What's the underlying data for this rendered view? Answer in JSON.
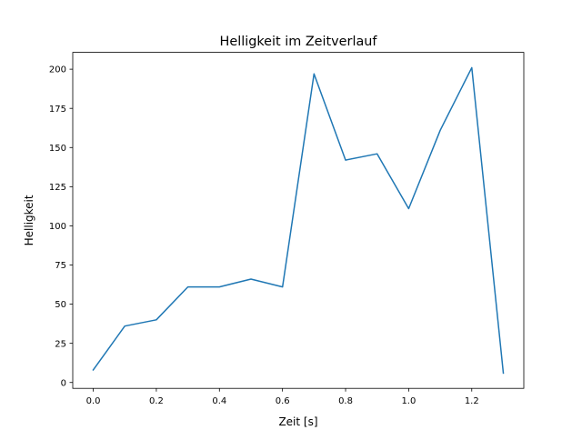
{
  "chart_data": {
    "type": "line",
    "title": "Helligkeit im Zeitverlauf",
    "xlabel": "Zeit [s]",
    "ylabel": "Helligkeit",
    "x": [
      0.0,
      0.1,
      0.2,
      0.3,
      0.4,
      0.5,
      0.6,
      0.7,
      0.8,
      0.9,
      1.0,
      1.1,
      1.2,
      1.3
    ],
    "series": [
      {
        "name": "Helligkeit",
        "color": "#1f77b4",
        "values": [
          8,
          36,
          40,
          61,
          61,
          66,
          61,
          197,
          142,
          146,
          111,
          161,
          201,
          6
        ]
      }
    ],
    "xlim": [
      -0.065,
      1.365
    ],
    "ylim": [
      -3.75,
      210.75
    ],
    "xticks": [
      0.0,
      0.2,
      0.4,
      0.6,
      0.8,
      1.0,
      1.2
    ],
    "xtick_labels": [
      "0.0",
      "0.2",
      "0.4",
      "0.6",
      "0.8",
      "1.0",
      "1.2"
    ],
    "yticks": [
      0,
      25,
      50,
      75,
      100,
      125,
      150,
      175,
      200
    ],
    "ytick_labels": [
      "0",
      "25",
      "50",
      "75",
      "100",
      "125",
      "150",
      "175",
      "200"
    ],
    "grid": false,
    "legend": "none"
  }
}
